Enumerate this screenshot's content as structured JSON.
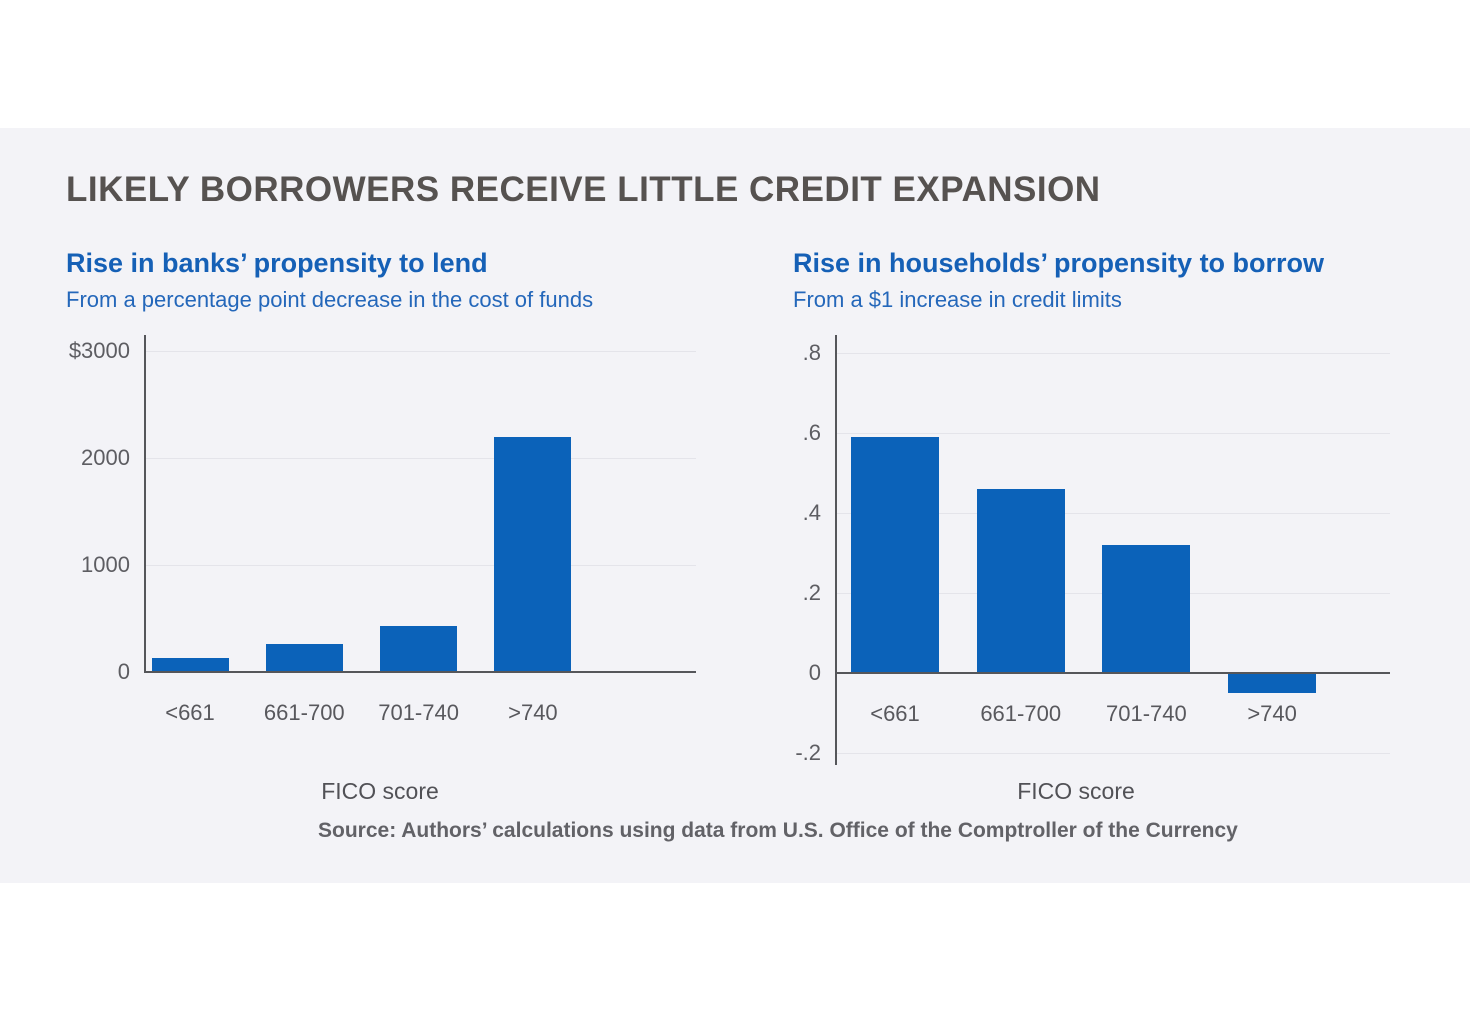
{
  "figure": {
    "title": "LIKELY BORROWERS RECEIVE LITTLE CREDIT EXPANSION",
    "source": "Source: Authors’ calculations using data from U.S. Office of the Comptroller of the Currency"
  },
  "colors": {
    "bar": "#0b62b9",
    "accent_blue_title": "#1560b6",
    "accent_blue_subtitle": "#2467ba",
    "heading_gray": "#565250",
    "axis_line": "#55565a",
    "grid_line": "#e4e4ea",
    "tick_label_gray": "#5d5d62",
    "card_background": "#f3f3f7"
  },
  "chart_data": [
    {
      "type": "bar",
      "title": "Rise in banks’ propensity to lend",
      "subtitle": "From a percentage point decrease in the cost of funds",
      "categories": [
        "<661",
        "661-700",
        "701-740",
        ">740"
      ],
      "values": [
        130,
        260,
        430,
        2200
      ],
      "xlabel": "FICO score",
      "ylabel": "",
      "ylim": [
        0,
        3000
      ],
      "yticks": [
        {
          "value": 0,
          "label": "0"
        },
        {
          "value": 1000,
          "label": "1000"
        },
        {
          "value": 2000,
          "label": "2000"
        },
        {
          "value": 3000,
          "label": "$3000"
        }
      ],
      "grid": true,
      "legend": "none"
    },
    {
      "type": "bar",
      "title": "Rise in households’ propensity to borrow",
      "subtitle": "From a $1 increase in credit limits",
      "categories": [
        "<661",
        "661-700",
        "701-740",
        ">740"
      ],
      "values": [
        0.59,
        0.46,
        0.32,
        -0.05
      ],
      "xlabel": "FICO score",
      "ylabel": "",
      "ylim": [
        -0.2,
        0.8
      ],
      "yticks": [
        {
          "value": -0.2,
          "label": "-.2"
        },
        {
          "value": 0,
          "label": "0"
        },
        {
          "value": 0.2,
          "label": ".2"
        },
        {
          "value": 0.4,
          "label": ".4"
        },
        {
          "value": 0.6,
          "label": ".6"
        },
        {
          "value": 0.8,
          "label": ".8"
        }
      ],
      "grid": true,
      "legend": "none"
    }
  ]
}
